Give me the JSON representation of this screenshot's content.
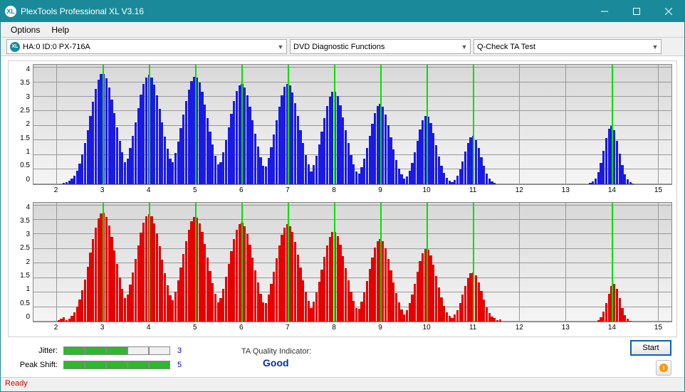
{
  "window": {
    "title": "PlexTools Professional XL V3.16",
    "icon_label": "XL"
  },
  "menubar": {
    "items": [
      "Options",
      "Help"
    ]
  },
  "toolbar": {
    "device_icon": "XL",
    "device": "HA:0 ID:0  PX-716A",
    "section": "DVD Diagnostic Functions",
    "test": "Q-Check TA Test"
  },
  "chart_common": {
    "xlim": [
      1.5,
      15.3
    ],
    "ylim": [
      0,
      4.1
    ],
    "y_ticks": [
      0,
      0.5,
      1,
      1.5,
      2,
      2.5,
      3,
      3.5,
      4
    ],
    "y_labels": [
      "0",
      "0.5",
      "1",
      "1.5",
      "2",
      "2.5",
      "3",
      "3.5",
      "4"
    ],
    "x_ticks": [
      2,
      3,
      4,
      5,
      6,
      7,
      8,
      9,
      10,
      11,
      12,
      13,
      14,
      15
    ],
    "x_labels": [
      "2",
      "3",
      "4",
      "5",
      "6",
      "7",
      "8",
      "9",
      "10",
      "11",
      "12",
      "13",
      "14",
      "15"
    ],
    "background_top": "#d8d8d8",
    "background_bottom": "#f5f5f5",
    "grid_color": "#999999",
    "peak_marker_color": "#00e000",
    "peak_centers": [
      3,
      4,
      5,
      6,
      7,
      8,
      9,
      10,
      11,
      14
    ]
  },
  "chart_top": {
    "bar_color": "#1a1ae6",
    "peaks": [
      {
        "c": 3.0,
        "h": 3.8,
        "w": 0.86
      },
      {
        "c": 4.0,
        "h": 3.75,
        "w": 0.86
      },
      {
        "c": 5.0,
        "h": 3.7,
        "w": 0.86
      },
      {
        "c": 6.0,
        "h": 3.45,
        "w": 0.82
      },
      {
        "c": 7.0,
        "h": 3.45,
        "w": 0.8
      },
      {
        "c": 8.0,
        "h": 3.2,
        "w": 0.78
      },
      {
        "c": 9.0,
        "h": 2.75,
        "w": 0.72
      },
      {
        "c": 10.0,
        "h": 2.35,
        "w": 0.64
      },
      {
        "c": 11.0,
        "h": 1.65,
        "w": 0.56
      },
      {
        "c": 14.0,
        "h": 2.0,
        "w": 0.5
      }
    ]
  },
  "chart_bottom": {
    "bar_color": "#e60000",
    "peaks": [
      {
        "c": 3.0,
        "h": 3.75,
        "w": 0.88
      },
      {
        "c": 4.0,
        "h": 3.7,
        "w": 0.88
      },
      {
        "c": 5.0,
        "h": 3.6,
        "w": 0.86
      },
      {
        "c": 6.0,
        "h": 3.4,
        "w": 0.84
      },
      {
        "c": 7.0,
        "h": 3.35,
        "w": 0.82
      },
      {
        "c": 8.0,
        "h": 3.1,
        "w": 0.8
      },
      {
        "c": 9.0,
        "h": 2.85,
        "w": 0.76
      },
      {
        "c": 10.0,
        "h": 2.5,
        "w": 0.7
      },
      {
        "c": 11.0,
        "h": 1.7,
        "w": 0.62
      },
      {
        "c": 14.05,
        "h": 1.3,
        "w": 0.42
      }
    ],
    "noise_floor_ranges": [
      {
        "from": 2.0,
        "to": 2.4,
        "h": 0.15
      },
      {
        "from": 11.3,
        "to": 11.6,
        "h": 0.12
      }
    ]
  },
  "meters": {
    "jitter": {
      "label": "Jitter:",
      "filled": 3,
      "total": 5,
      "value": "3",
      "value_color": "#0000cc"
    },
    "peak_shift": {
      "label": "Peak Shift:",
      "filled": 5,
      "total": 5,
      "value": "5",
      "value_color": "#0000cc"
    }
  },
  "quality": {
    "label": "TA Quality Indicator:",
    "value": "Good",
    "value_color": "#0033aa"
  },
  "buttons": {
    "start": "Start"
  },
  "statusbar": {
    "text": "Ready",
    "color": "#d00000"
  },
  "styling": {
    "titlebar_bg": "#1a8a9a",
    "meter_fill": "#2eb82e",
    "bar_count": 240
  }
}
